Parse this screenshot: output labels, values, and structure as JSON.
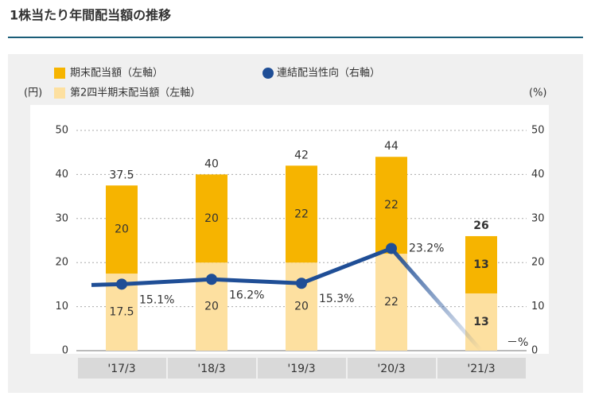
{
  "title": "1株当たり年間配当額の推移",
  "chart_data": {
    "type": "bar",
    "stacked": true,
    "categories": [
      "'17/3",
      "'18/3",
      "'19/3",
      "'20/3",
      "'21/3"
    ],
    "series": [
      {
        "name": "第2四半期末配当額（左軸）",
        "color": "#fde0a0",
        "values": [
          17.5,
          20,
          20,
          22,
          13
        ]
      },
      {
        "name": "期末配当額（左軸）",
        "color": "#f6b400",
        "values": [
          20,
          20,
          22,
          22,
          13
        ]
      },
      {
        "name": "連結配当性向（右軸）",
        "type": "line",
        "axis": "y2",
        "color": "#1f4e96",
        "values": [
          15.1,
          16.2,
          15.3,
          23.2,
          null
        ],
        "value_labels": [
          "15.1%",
          "16.2%",
          "15.3%",
          "23.2%",
          "－%"
        ]
      }
    ],
    "totals": [
      37.5,
      40,
      42,
      44,
      26
    ],
    "ylabel": "(円)",
    "y2label": "(%)",
    "ylim": [
      0,
      50
    ],
    "yticks": [
      0,
      10,
      20,
      30,
      40,
      50
    ],
    "y2lim": [
      0,
      50
    ],
    "y2ticks": [
      0,
      10,
      20,
      30,
      40,
      50
    ]
  }
}
